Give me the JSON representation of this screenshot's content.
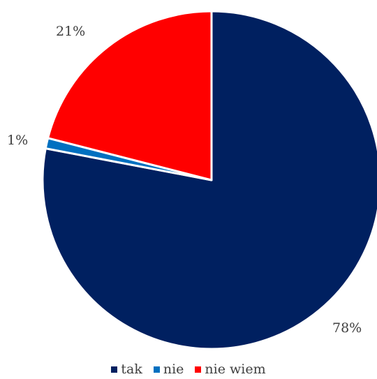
{
  "chart_data": {
    "type": "pie",
    "title": "",
    "categories": [
      "tak",
      "nie",
      "nie wiem"
    ],
    "values": [
      78,
      1,
      21
    ],
    "data_labels": [
      "78%",
      "1%",
      "21%"
    ],
    "colors": [
      "#002060",
      "#0070C0",
      "#FF0000"
    ],
    "start_angle_deg": 0,
    "direction": "clockwise",
    "legend": {
      "position": "bottom",
      "items": [
        {
          "label": "tak",
          "color": "#002060"
        },
        {
          "label": "nie",
          "color": "#0070C0"
        },
        {
          "label": "nie wiem",
          "color": "#FF0000"
        }
      ]
    }
  }
}
